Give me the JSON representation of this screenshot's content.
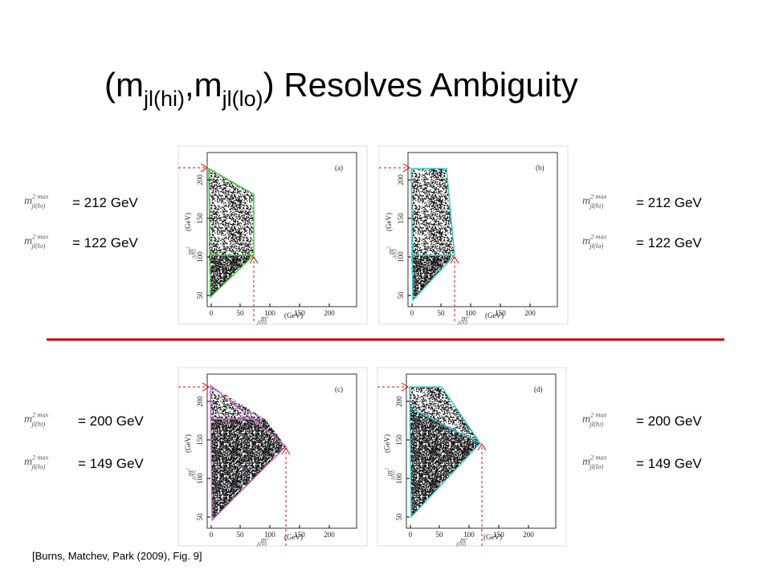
{
  "title": {
    "parts": [
      "(m",
      "jl(hi)",
      ",m",
      "jl(lo)",
      ") Resolves Ambiguity"
    ]
  },
  "panels": [
    {
      "label": "(a)",
      "xticks": [
        "0",
        "50",
        "100",
        "150",
        "200"
      ],
      "yticks": [
        "50",
        "100",
        "150",
        "200"
      ],
      "xlabel": {
        "base": "m",
        "sup": "2",
        "sub": "jl(lo)",
        "unit": "(GeV)"
      },
      "ylabel": {
        "base": "m",
        "sup": "2",
        "sub": "jl(hi)",
        "unit": "(GeV)"
      }
    },
    {
      "label": "(b)",
      "xticks": [
        "0",
        "50",
        "100",
        "150",
        "200"
      ],
      "yticks": [
        "50",
        "100",
        "150",
        "200"
      ],
      "xlabel": {
        "base": "m",
        "sup": "2",
        "sub": "jl(lo)",
        "unit": "(GeV)"
      },
      "ylabel": {
        "base": "m",
        "sup": "2",
        "sub": "jl(hi)",
        "unit": "(GeV)"
      }
    },
    {
      "label": "(c)",
      "xticks": [
        "0",
        "50",
        "100",
        "150",
        "200"
      ],
      "yticks": [
        "50",
        "100",
        "150",
        "200"
      ],
      "xlabel": {
        "base": "m",
        "sup": "2",
        "sub": "jl(lo)",
        "unit": "(GeV)"
      },
      "ylabel": {
        "base": "m",
        "sup": "2",
        "sub": "jl(hi)",
        "unit": "(GeV)"
      }
    },
    {
      "label": "(d)",
      "xticks": [
        "0",
        "50",
        "100",
        "150",
        "200"
      ],
      "yticks": [
        "50",
        "100",
        "150",
        "200"
      ],
      "xlabel": {
        "base": "m",
        "sup": "2",
        "sub": "jl(lo)",
        "unit": "(GeV)"
      },
      "ylabel": {
        "base": "m",
        "sup": "2",
        "sub": "jl(hi)",
        "unit": "(GeV)"
      }
    }
  ],
  "annotations": [
    {
      "symbol": {
        "base": "m",
        "sup": "2 max",
        "sub": "jl(hi)"
      },
      "value": "= 212 GeV"
    },
    {
      "symbol": {
        "base": "m",
        "sup": "2 max",
        "sub": "jl(lo)"
      },
      "value": "= 122 GeV"
    },
    {
      "symbol": {
        "base": "m",
        "sup": "2 max",
        "sub": "jl(hi)"
      },
      "value": "= 212 GeV"
    },
    {
      "symbol": {
        "base": "m",
        "sup": "2 max",
        "sub": "jl(lo)"
      },
      "value": "= 122 GeV"
    },
    {
      "symbol": {
        "base": "m",
        "sup": "2 max",
        "sub": "jl(hi)"
      },
      "value": "= 200 GeV"
    },
    {
      "symbol": {
        "base": "m",
        "sup": "2 max",
        "sub": "jl(lo)"
      },
      "value": "= 149 GeV"
    },
    {
      "symbol": {
        "base": "m",
        "sup": "2 max",
        "sub": "jl(hi)"
      },
      "value": "= 200 GeV"
    },
    {
      "symbol": {
        "base": "m",
        "sup": "2 max",
        "sub": "jl(lo)"
      },
      "value": "= 149 GeV"
    }
  ],
  "citation": "[Burns, Matchev, Park (2009), Fig. 9]"
}
